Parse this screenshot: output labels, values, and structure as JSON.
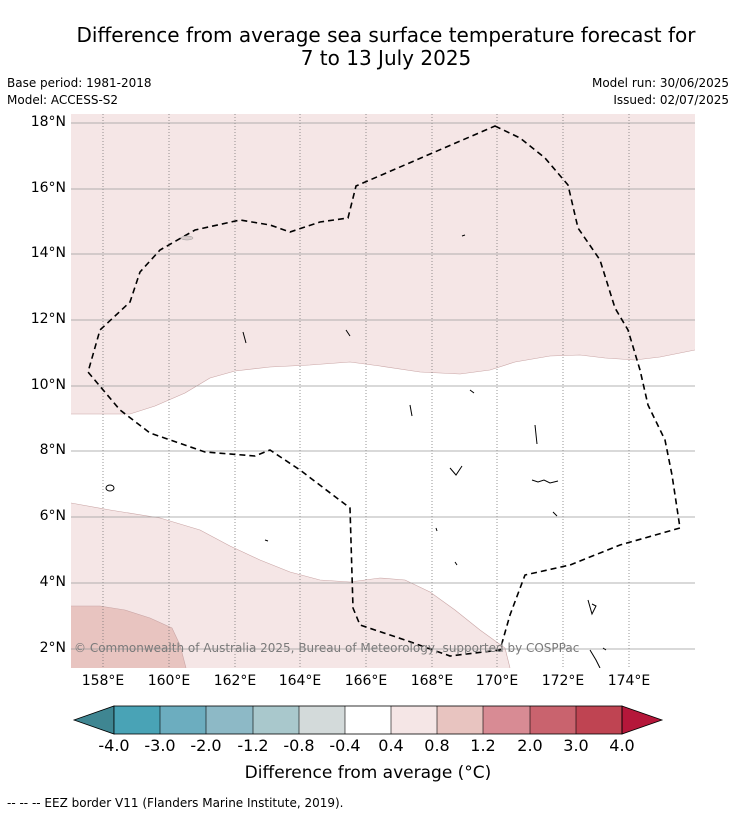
{
  "title": {
    "line1": "Difference from average sea surface temperature forecast for",
    "line2": "7 to 13 July 2025"
  },
  "meta": {
    "base_period": "Base period: 1981-2018",
    "model": "Model: ACCESS-S2",
    "model_run": "Model run: 30/06/2025",
    "issued": "Issued: 02/07/2025"
  },
  "axes": {
    "lat_labels": [
      "18°N",
      "16°N",
      "14°N",
      "12°N",
      "10°N",
      "8°N",
      "6°N",
      "4°N",
      "2°N"
    ],
    "lon_labels": [
      "158°E",
      "160°E",
      "162°E",
      "164°E",
      "166°E",
      "168°E",
      "170°E",
      "172°E",
      "174°E"
    ]
  },
  "copyright": "© Commonwealth of Australia 2025, Bureau of Meteorology, supported by COSPPac",
  "colorbar": {
    "title": "Difference from average (°C)",
    "tick_labels": [
      "-4.0",
      "-3.0",
      "-2.0",
      "-1.2",
      "-0.8",
      "-0.4",
      "0.4",
      "0.8",
      "1.2",
      "2.0",
      "3.0",
      "4.0"
    ],
    "colors": [
      "#3f8692",
      "#49a3b6",
      "#6cadbf",
      "#8db9c6",
      "#a9c8cc",
      "#d3dada",
      "#ffffff",
      "#f5e6e6",
      "#e8c4c0",
      "#d88b94",
      "#c9636e",
      "#bf4452",
      "#b5173a"
    ]
  },
  "legend": {
    "eez": "-- -- -- EEZ border V11 (Flanders Marine Institute, 2019)."
  },
  "map_colors": {
    "light_warm": "#f5e6e6",
    "warmer": "#e8c4c0",
    "neutral": "#ffffff"
  }
}
